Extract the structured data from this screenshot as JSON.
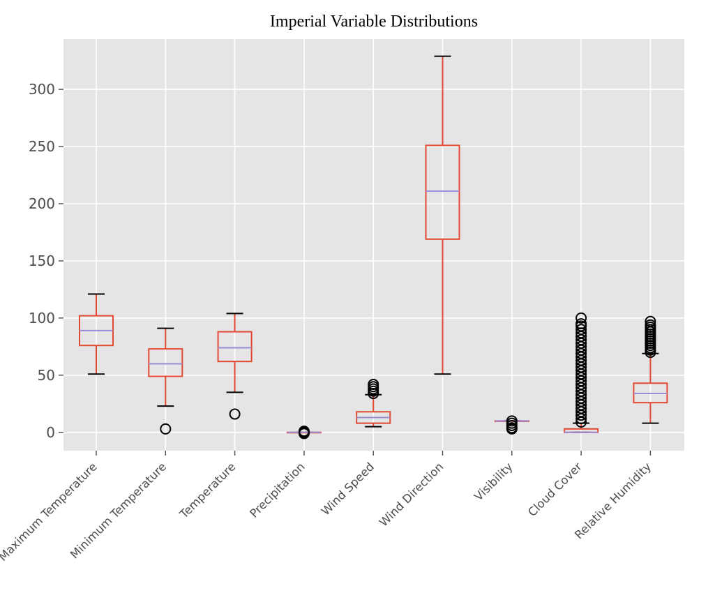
{
  "chart_data": {
    "type": "box",
    "title": "Imperial Variable Distributions",
    "xlabel": "",
    "ylabel": "",
    "ylim": [
      -16,
      344
    ],
    "yticks": [
      0,
      50,
      100,
      150,
      200,
      250,
      300
    ],
    "grid": true,
    "colors": {
      "background": "#e5e5e5",
      "grid": "#ffffff",
      "box": "#e24a33",
      "median": "#988ed5",
      "whisker_cap": "#000000",
      "flier": "#000000",
      "tick": "#4d4d4d"
    },
    "boxes": [
      {
        "label": "Maximum Temperature",
        "whislo": 51,
        "q1": 76,
        "med": 89,
        "q3": 102,
        "whishi": 121,
        "fliers": []
      },
      {
        "label": "Minimum Temperature",
        "whislo": 23,
        "q1": 49,
        "med": 60,
        "q3": 73,
        "whishi": 91,
        "fliers": [
          3
        ]
      },
      {
        "label": "Temperature",
        "whislo": 35,
        "q1": 62,
        "med": 74,
        "q3": 88,
        "whishi": 104,
        "fliers": [
          16
        ]
      },
      {
        "label": "Precipitation",
        "whislo": 0,
        "q1": 0,
        "med": 0,
        "q3": 0,
        "whishi": 0,
        "fliers": [
          -1,
          0,
          1
        ]
      },
      {
        "label": "Wind Speed",
        "whislo": 5,
        "q1": 8,
        "med": 13,
        "q3": 18,
        "whishi": 33,
        "fliers": [
          34,
          36,
          38,
          40,
          42
        ]
      },
      {
        "label": "Wind Direction",
        "whislo": 51,
        "q1": 169,
        "med": 211,
        "q3": 251,
        "whishi": 329,
        "fliers": []
      },
      {
        "label": "Visibility",
        "whislo": 10,
        "q1": 10,
        "med": 10,
        "q3": 10,
        "whishi": 10,
        "fliers": [
          3,
          4,
          6,
          8,
          10
        ]
      },
      {
        "label": "Cloud Cover",
        "whislo": 0,
        "q1": 0,
        "med": 0,
        "q3": 3,
        "whishi": 8,
        "fliers": [
          9,
          12,
          15,
          18,
          21,
          24,
          27,
          30,
          33,
          36,
          39,
          42,
          45,
          48,
          51,
          54,
          57,
          60,
          63,
          66,
          69,
          72,
          75,
          78,
          81,
          84,
          87,
          90,
          93,
          95,
          100
        ]
      },
      {
        "label": "Relative Humidity",
        "whislo": 8,
        "q1": 26,
        "med": 34,
        "q3": 43,
        "whishi": 69,
        "fliers": [
          70,
          72,
          74,
          76,
          78,
          80,
          82,
          84,
          86,
          88,
          90,
          92,
          94,
          97
        ]
      }
    ]
  }
}
